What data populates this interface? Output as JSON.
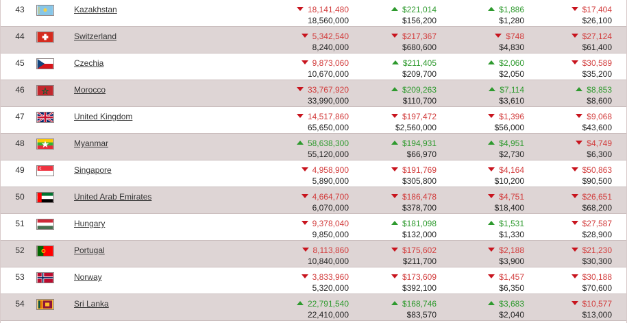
{
  "rows": [
    {
      "rank": "43",
      "country": "Kazakhstan",
      "flag": "kazakhstan",
      "c1": {
        "dir": "down",
        "value": "18,141,480",
        "base": "18,560,000"
      },
      "c2": {
        "dir": "up",
        "value": "$221,014",
        "base": "$156,200"
      },
      "c3": {
        "dir": "up",
        "value": "$1,886",
        "base": "$1,280"
      },
      "c4": {
        "dir": "down",
        "value": "$17,404",
        "base": "$26,100"
      }
    },
    {
      "rank": "44",
      "country": "Switzerland",
      "flag": "switzerland",
      "c1": {
        "dir": "down",
        "value": "5,342,540",
        "base": "8,240,000"
      },
      "c2": {
        "dir": "down",
        "value": "$217,367",
        "base": "$680,600"
      },
      "c3": {
        "dir": "down",
        "value": "$748",
        "base": "$4,830"
      },
      "c4": {
        "dir": "down",
        "value": "$27,124",
        "base": "$61,400"
      }
    },
    {
      "rank": "45",
      "country": "Czechia",
      "flag": "czechia",
      "c1": {
        "dir": "down",
        "value": "9,873,060",
        "base": "10,670,000"
      },
      "c2": {
        "dir": "up",
        "value": "$211,405",
        "base": "$209,700"
      },
      "c3": {
        "dir": "up",
        "value": "$2,060",
        "base": "$2,050"
      },
      "c4": {
        "dir": "down",
        "value": "$30,589",
        "base": "$35,200"
      }
    },
    {
      "rank": "46",
      "country": "Morocco",
      "flag": "morocco",
      "c1": {
        "dir": "down",
        "value": "33,767,920",
        "base": "33,990,000"
      },
      "c2": {
        "dir": "up",
        "value": "$209,263",
        "base": "$110,700"
      },
      "c3": {
        "dir": "up",
        "value": "$7,114",
        "base": "$3,610"
      },
      "c4": {
        "dir": "up",
        "value": "$8,853",
        "base": "$8,600"
      }
    },
    {
      "rank": "47",
      "country": "United Kingdom",
      "flag": "uk",
      "c1": {
        "dir": "down",
        "value": "14,517,860",
        "base": "65,650,000"
      },
      "c2": {
        "dir": "down",
        "value": "$197,472",
        "base": "$2,560,000"
      },
      "c3": {
        "dir": "down",
        "value": "$1,396",
        "base": "$56,000"
      },
      "c4": {
        "dir": "down",
        "value": "$9,068",
        "base": "$43,600"
      }
    },
    {
      "rank": "48",
      "country": "Myanmar",
      "flag": "myanmar",
      "c1": {
        "dir": "up",
        "value": "58,638,300",
        "base": "55,120,000"
      },
      "c2": {
        "dir": "up",
        "value": "$194,931",
        "base": "$66,970"
      },
      "c3": {
        "dir": "up",
        "value": "$4,951",
        "base": "$2,730"
      },
      "c4": {
        "dir": "down",
        "value": "$4,749",
        "base": "$6,300"
      }
    },
    {
      "rank": "49",
      "country": "Singapore",
      "flag": "singapore",
      "c1": {
        "dir": "down",
        "value": "4,958,900",
        "base": "5,890,000"
      },
      "c2": {
        "dir": "down",
        "value": "$191,769",
        "base": "$305,800"
      },
      "c3": {
        "dir": "down",
        "value": "$4,164",
        "base": "$10,200"
      },
      "c4": {
        "dir": "down",
        "value": "$50,863",
        "base": "$90,500"
      }
    },
    {
      "rank": "50",
      "country": "United Arab Emirates",
      "flag": "uae",
      "c1": {
        "dir": "down",
        "value": "4,664,700",
        "base": "6,070,000"
      },
      "c2": {
        "dir": "down",
        "value": "$186,478",
        "base": "$378,700"
      },
      "c3": {
        "dir": "down",
        "value": "$4,751",
        "base": "$18,400"
      },
      "c4": {
        "dir": "down",
        "value": "$26,651",
        "base": "$68,200"
      }
    },
    {
      "rank": "51",
      "country": "Hungary",
      "flag": "hungary",
      "c1": {
        "dir": "down",
        "value": "9,378,040",
        "base": "9,850,000"
      },
      "c2": {
        "dir": "up",
        "value": "$181,098",
        "base": "$132,000"
      },
      "c3": {
        "dir": "up",
        "value": "$1,531",
        "base": "$1,330"
      },
      "c4": {
        "dir": "down",
        "value": "$27,587",
        "base": "$28,900"
      }
    },
    {
      "rank": "52",
      "country": "Portugal",
      "flag": "portugal",
      "c1": {
        "dir": "down",
        "value": "8,113,860",
        "base": "10,840,000"
      },
      "c2": {
        "dir": "down",
        "value": "$175,602",
        "base": "$211,700"
      },
      "c3": {
        "dir": "down",
        "value": "$2,188",
        "base": "$3,900"
      },
      "c4": {
        "dir": "down",
        "value": "$21,230",
        "base": "$30,300"
      }
    },
    {
      "rank": "53",
      "country": "Norway",
      "flag": "norway",
      "c1": {
        "dir": "down",
        "value": "3,833,960",
        "base": "5,320,000"
      },
      "c2": {
        "dir": "down",
        "value": "$173,609",
        "base": "$392,100"
      },
      "c3": {
        "dir": "down",
        "value": "$1,457",
        "base": "$6,350"
      },
      "c4": {
        "dir": "down",
        "value": "$30,188",
        "base": "$70,600"
      }
    },
    {
      "rank": "54",
      "country": "Sri Lanka",
      "flag": "srilanka",
      "c1": {
        "dir": "up",
        "value": "22,791,540",
        "base": "22,410,000"
      },
      "c2": {
        "dir": "up",
        "value": "$168,746",
        "base": "$83,570"
      },
      "c3": {
        "dir": "up",
        "value": "$3,683",
        "base": "$2,040"
      },
      "c4": {
        "dir": "down",
        "value": "$10,577",
        "base": "$13,000"
      }
    }
  ],
  "colors": {
    "down": "#d23b3b",
    "up": "#2e9a2e",
    "row_alt": "#ded5d5"
  }
}
